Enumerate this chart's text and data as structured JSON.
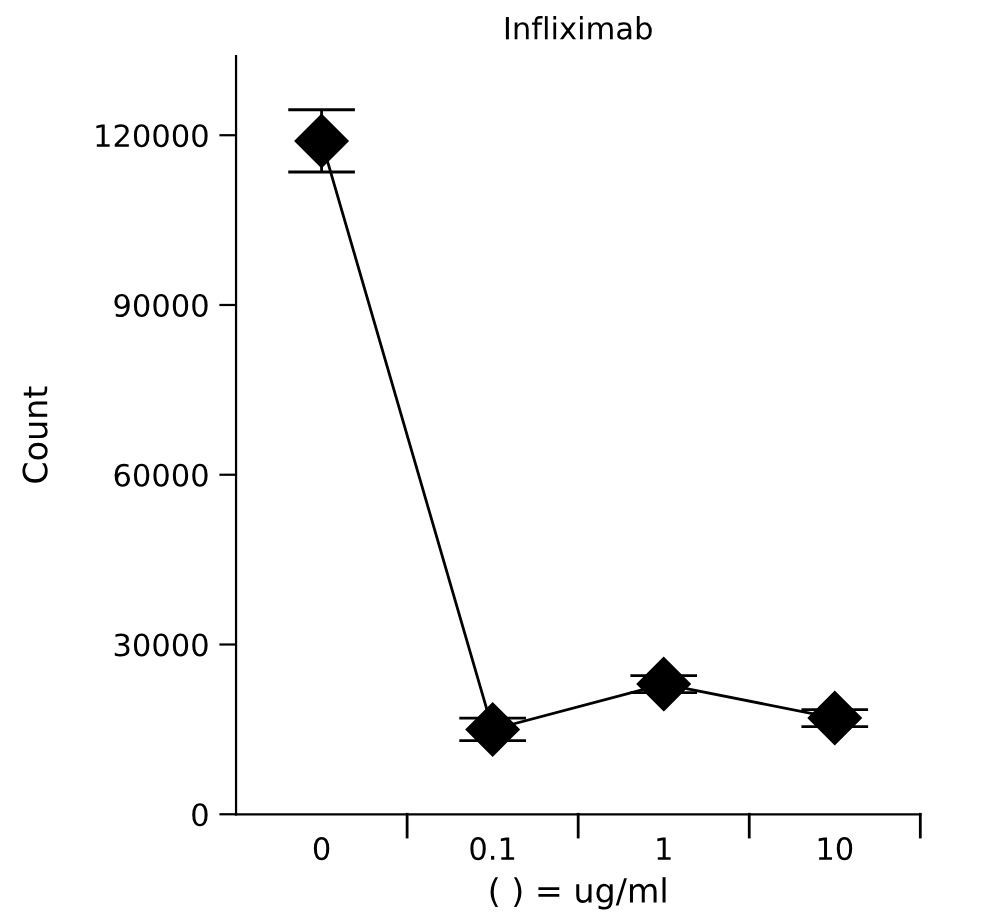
{
  "chart_data": {
    "type": "line",
    "title": "Infliximab",
    "xlabel": "( ) = ug/ml",
    "ylabel": "Count",
    "categories": [
      "0",
      "0.1",
      "1",
      "10"
    ],
    "series": [
      {
        "color": "#000000",
        "values": [
          119000,
          15000,
          23000,
          17000
        ],
        "errors": [
          5500,
          2000,
          1500,
          1500
        ]
      }
    ],
    "ylim": [
      0,
      134000
    ],
    "yticks": [
      0,
      30000,
      60000,
      90000,
      120000
    ],
    "marker": "diamond",
    "line_style": "solid",
    "grid": false,
    "legend": false
  }
}
